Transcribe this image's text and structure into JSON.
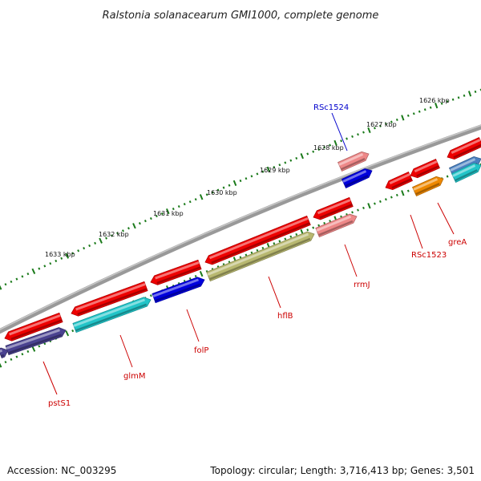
{
  "title": "Ralstonia solanacearum GMI1000, complete genome",
  "footer": {
    "accession": "Accession: NC_003295",
    "summary": "Topology: circular; Length: 3,716,413 bp; Genes: 3,501"
  },
  "ticks": [
    "1626 kbp",
    "1627 kbp",
    "1628 kbp",
    "1629 kbp",
    "1630 kbp",
    "1631 kbp",
    "1632 kbp",
    "1633 kbp"
  ],
  "genes": [
    "pstS1",
    "glmM",
    "folP",
    "hflB",
    "rrmJ",
    "RSc1524",
    "RSc1523",
    "greA"
  ],
  "colors": {
    "backbone": "#888888",
    "tick": "#1a7a1a",
    "label_red": "#cc0000",
    "label_blue": "#0000cc",
    "cds_red": "#ee0000",
    "pink": "#ee8888",
    "blue": "#0000dd",
    "cyan": "#22c4c8",
    "khaki": "#b8b870",
    "slate": "#4a4290",
    "orange": "#ee8800",
    "steel": "#4a80c0"
  }
}
